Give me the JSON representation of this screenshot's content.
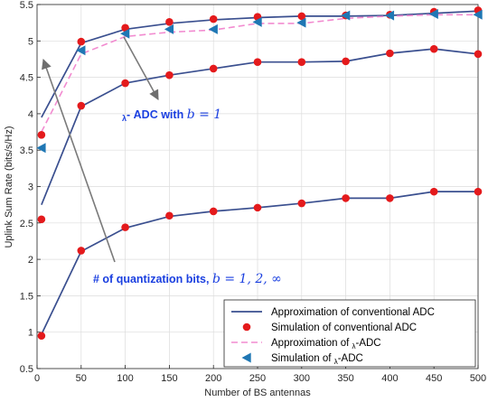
{
  "chart_data": {
    "type": "line",
    "xlabel": "Number of BS antennas",
    "ylabel": "Uplink Sum Rate (bits/s/Hz)",
    "xlim": [
      0,
      500
    ],
    "ylim": [
      0.5,
      5.5
    ],
    "xticks": [
      0,
      50,
      100,
      150,
      200,
      250,
      300,
      350,
      400,
      450,
      500
    ],
    "yticks": [
      0.5,
      1,
      1.5,
      2,
      2.5,
      3,
      3.5,
      4,
      4.5,
      5,
      5.5
    ],
    "grid": true,
    "legend_position": "bottom-right",
    "colors": {
      "approx_conv": "#3a4f8f",
      "sim_conv": "#e41a1c",
      "approx_mx": "#f28bd0",
      "sim_mx": "#1f77b4"
    },
    "x": [
      5,
      50,
      100,
      150,
      200,
      250,
      300,
      350,
      400,
      450,
      500
    ],
    "series": [
      {
        "name": "Approximation of conventional ADC",
        "group": "b1",
        "style": "solid",
        "values": [
          0.97,
          2.11,
          2.43,
          2.59,
          2.66,
          2.71,
          2.77,
          2.84,
          2.84,
          2.93,
          2.93
        ]
      },
      {
        "name": "Approximation of conventional ADC",
        "group": "b2",
        "style": "solid",
        "values": [
          2.75,
          4.1,
          4.42,
          4.53,
          4.62,
          4.71,
          4.71,
          4.72,
          4.83,
          4.89,
          4.82
        ]
      },
      {
        "name": "Approximation of conventional ADC",
        "group": "binf",
        "style": "solid",
        "values": [
          3.95,
          4.97,
          5.16,
          5.24,
          5.29,
          5.32,
          5.34,
          5.34,
          5.35,
          5.38,
          5.41
        ]
      },
      {
        "name": "Simulation of conventional ADC",
        "group": "b1",
        "marker": "circle",
        "values": [
          0.95,
          2.12,
          2.44,
          2.6,
          2.66,
          2.71,
          2.77,
          2.84,
          2.84,
          2.93,
          2.93
        ]
      },
      {
        "name": "Simulation of conventional ADC",
        "group": "b2",
        "marker": "circle",
        "values": [
          2.55,
          4.11,
          4.42,
          4.53,
          4.62,
          4.71,
          4.71,
          4.72,
          4.83,
          4.89,
          4.82
        ]
      },
      {
        "name": "Simulation of conventional ADC",
        "group": "binf",
        "marker": "circle",
        "values": [
          3.71,
          4.99,
          5.18,
          5.26,
          5.3,
          5.33,
          5.34,
          5.35,
          5.36,
          5.4,
          5.42
        ]
      },
      {
        "name": "Approximation of M_λ-ADC",
        "group": "mx",
        "style": "dashed",
        "values": [
          3.75,
          4.82,
          5.06,
          5.12,
          5.15,
          5.24,
          5.24,
          5.31,
          5.34,
          5.36,
          5.36
        ]
      },
      {
        "name": "Simulation of M_λ-ADC",
        "group": "mx",
        "marker": "triangle-left",
        "values": [
          3.53,
          4.87,
          5.1,
          5.16,
          5.16,
          5.26,
          5.25,
          5.35,
          5.35,
          5.37,
          5.36
        ]
      }
    ],
    "legend": {
      "entries": [
        {
          "pre": "Approximation of conventional ADC",
          "math": "",
          "post": ""
        },
        {
          "pre": "Simulation of conventional ADC",
          "math": "",
          "post": ""
        },
        {
          "pre": "Approximation of ",
          "math": "𝒨",
          "sub": "λ",
          "post": "-ADC"
        },
        {
          "pre": "Simulation of ",
          "math": "𝒨",
          "sub": "λ",
          "post": "-ADC"
        }
      ]
    },
    "annotations": [
      {
        "pre": "",
        "math": "𝒨",
        "sub": "λ",
        "post": "- ADC with ",
        "math2": "b = 1"
      },
      {
        "pre": "# of quantization bits, ",
        "math2": "b = 1, 2, ∞"
      }
    ]
  }
}
